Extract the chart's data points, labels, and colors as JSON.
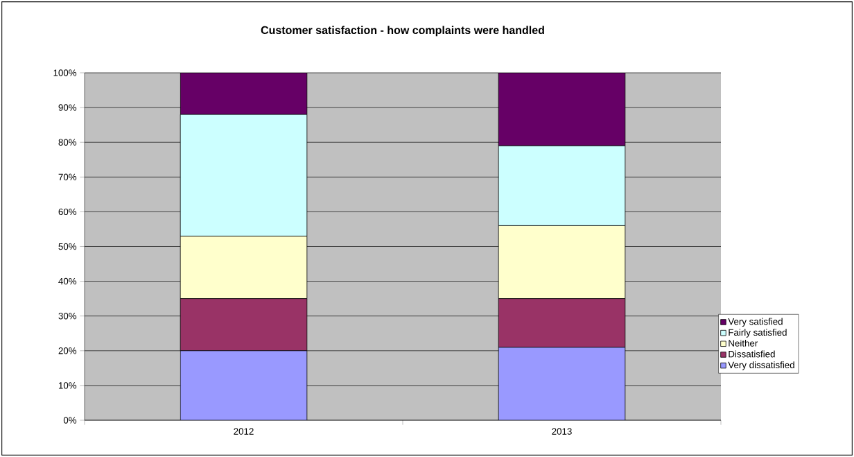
{
  "chart_data": {
    "type": "bar",
    "title": "Customer satisfaction - how complaints were handled",
    "categories": [
      "2012",
      "2013"
    ],
    "stacked": true,
    "series": [
      {
        "name": "Very dissatisfied",
        "color": "#9999ff",
        "values": [
          20,
          21
        ]
      },
      {
        "name": "Dissatisfied",
        "color": "#993366",
        "values": [
          15,
          14
        ]
      },
      {
        "name": "Neither",
        "color": "#ffffcc",
        "values": [
          18,
          21
        ]
      },
      {
        "name": "Fairly satisfied",
        "color": "#ccffff",
        "values": [
          35,
          23
        ]
      },
      {
        "name": "Very satisfied",
        "color": "#660066",
        "values": [
          12,
          21
        ]
      }
    ],
    "ylim": [
      0,
      100
    ],
    "yticks": [
      {
        "value": 0,
        "label": "0%"
      },
      {
        "value": 10,
        "label": "10%"
      },
      {
        "value": 20,
        "label": "20%"
      },
      {
        "value": 30,
        "label": "30%"
      },
      {
        "value": 40,
        "label": "40%"
      },
      {
        "value": 50,
        "label": "50%"
      },
      {
        "value": 60,
        "label": "60%"
      },
      {
        "value": 70,
        "label": "70%"
      },
      {
        "value": 80,
        "label": "80%"
      },
      {
        "value": 90,
        "label": "90%"
      },
      {
        "value": 100,
        "label": "100%"
      }
    ],
    "grid": "y",
    "legend": "right"
  }
}
